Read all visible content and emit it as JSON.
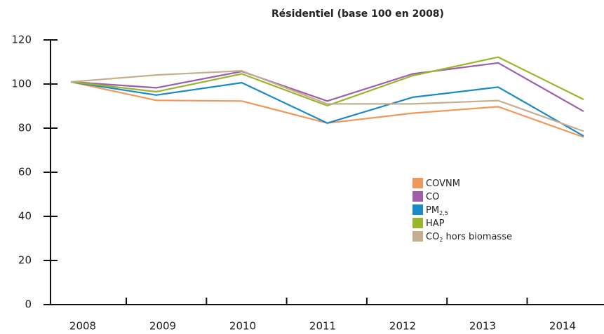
{
  "chart_data": {
    "type": "line",
    "title": "Résidentiel (base 100 en 2008)",
    "categories": [
      "2008",
      "2009",
      "2010",
      "2011",
      "2012",
      "2013",
      "2014"
    ],
    "ylim": [
      0,
      120
    ],
    "yticks": [
      0,
      20,
      40,
      60,
      80,
      100,
      120
    ],
    "series": [
      {
        "name": [
          {
            "text": "COVNM"
          }
        ],
        "color": "#f0975a",
        "values": [
          101,
          92.6,
          92.3,
          82.3,
          86.8,
          89.7,
          75.9
        ]
      },
      {
        "name": [
          {
            "text": "CO"
          }
        ],
        "color": "#9e5ea8",
        "values": [
          101,
          98.3,
          105.7,
          92.3,
          104.6,
          109.6,
          87.6
        ]
      },
      {
        "name": [
          {
            "text": "PM"
          },
          {
            "text": "2,5",
            "sub": true
          }
        ],
        "color": "#1a8ac7",
        "values": [
          101,
          95,
          100.6,
          82.3,
          94,
          98.6,
          76.4
        ]
      },
      {
        "name": [
          {
            "text": "HAP"
          }
        ],
        "color": "#99b52c",
        "values": [
          101,
          96.5,
          104.6,
          90.2,
          103.8,
          112.2,
          93
        ]
      },
      {
        "name": [
          {
            "text": "CO"
          },
          {
            "text": "2",
            "sub": true
          },
          {
            "text": " hors biomasse"
          }
        ],
        "color": "#c4ae90",
        "values": [
          101,
          104.1,
          106,
          91,
          91,
          92.5,
          78.6
        ]
      }
    ]
  }
}
